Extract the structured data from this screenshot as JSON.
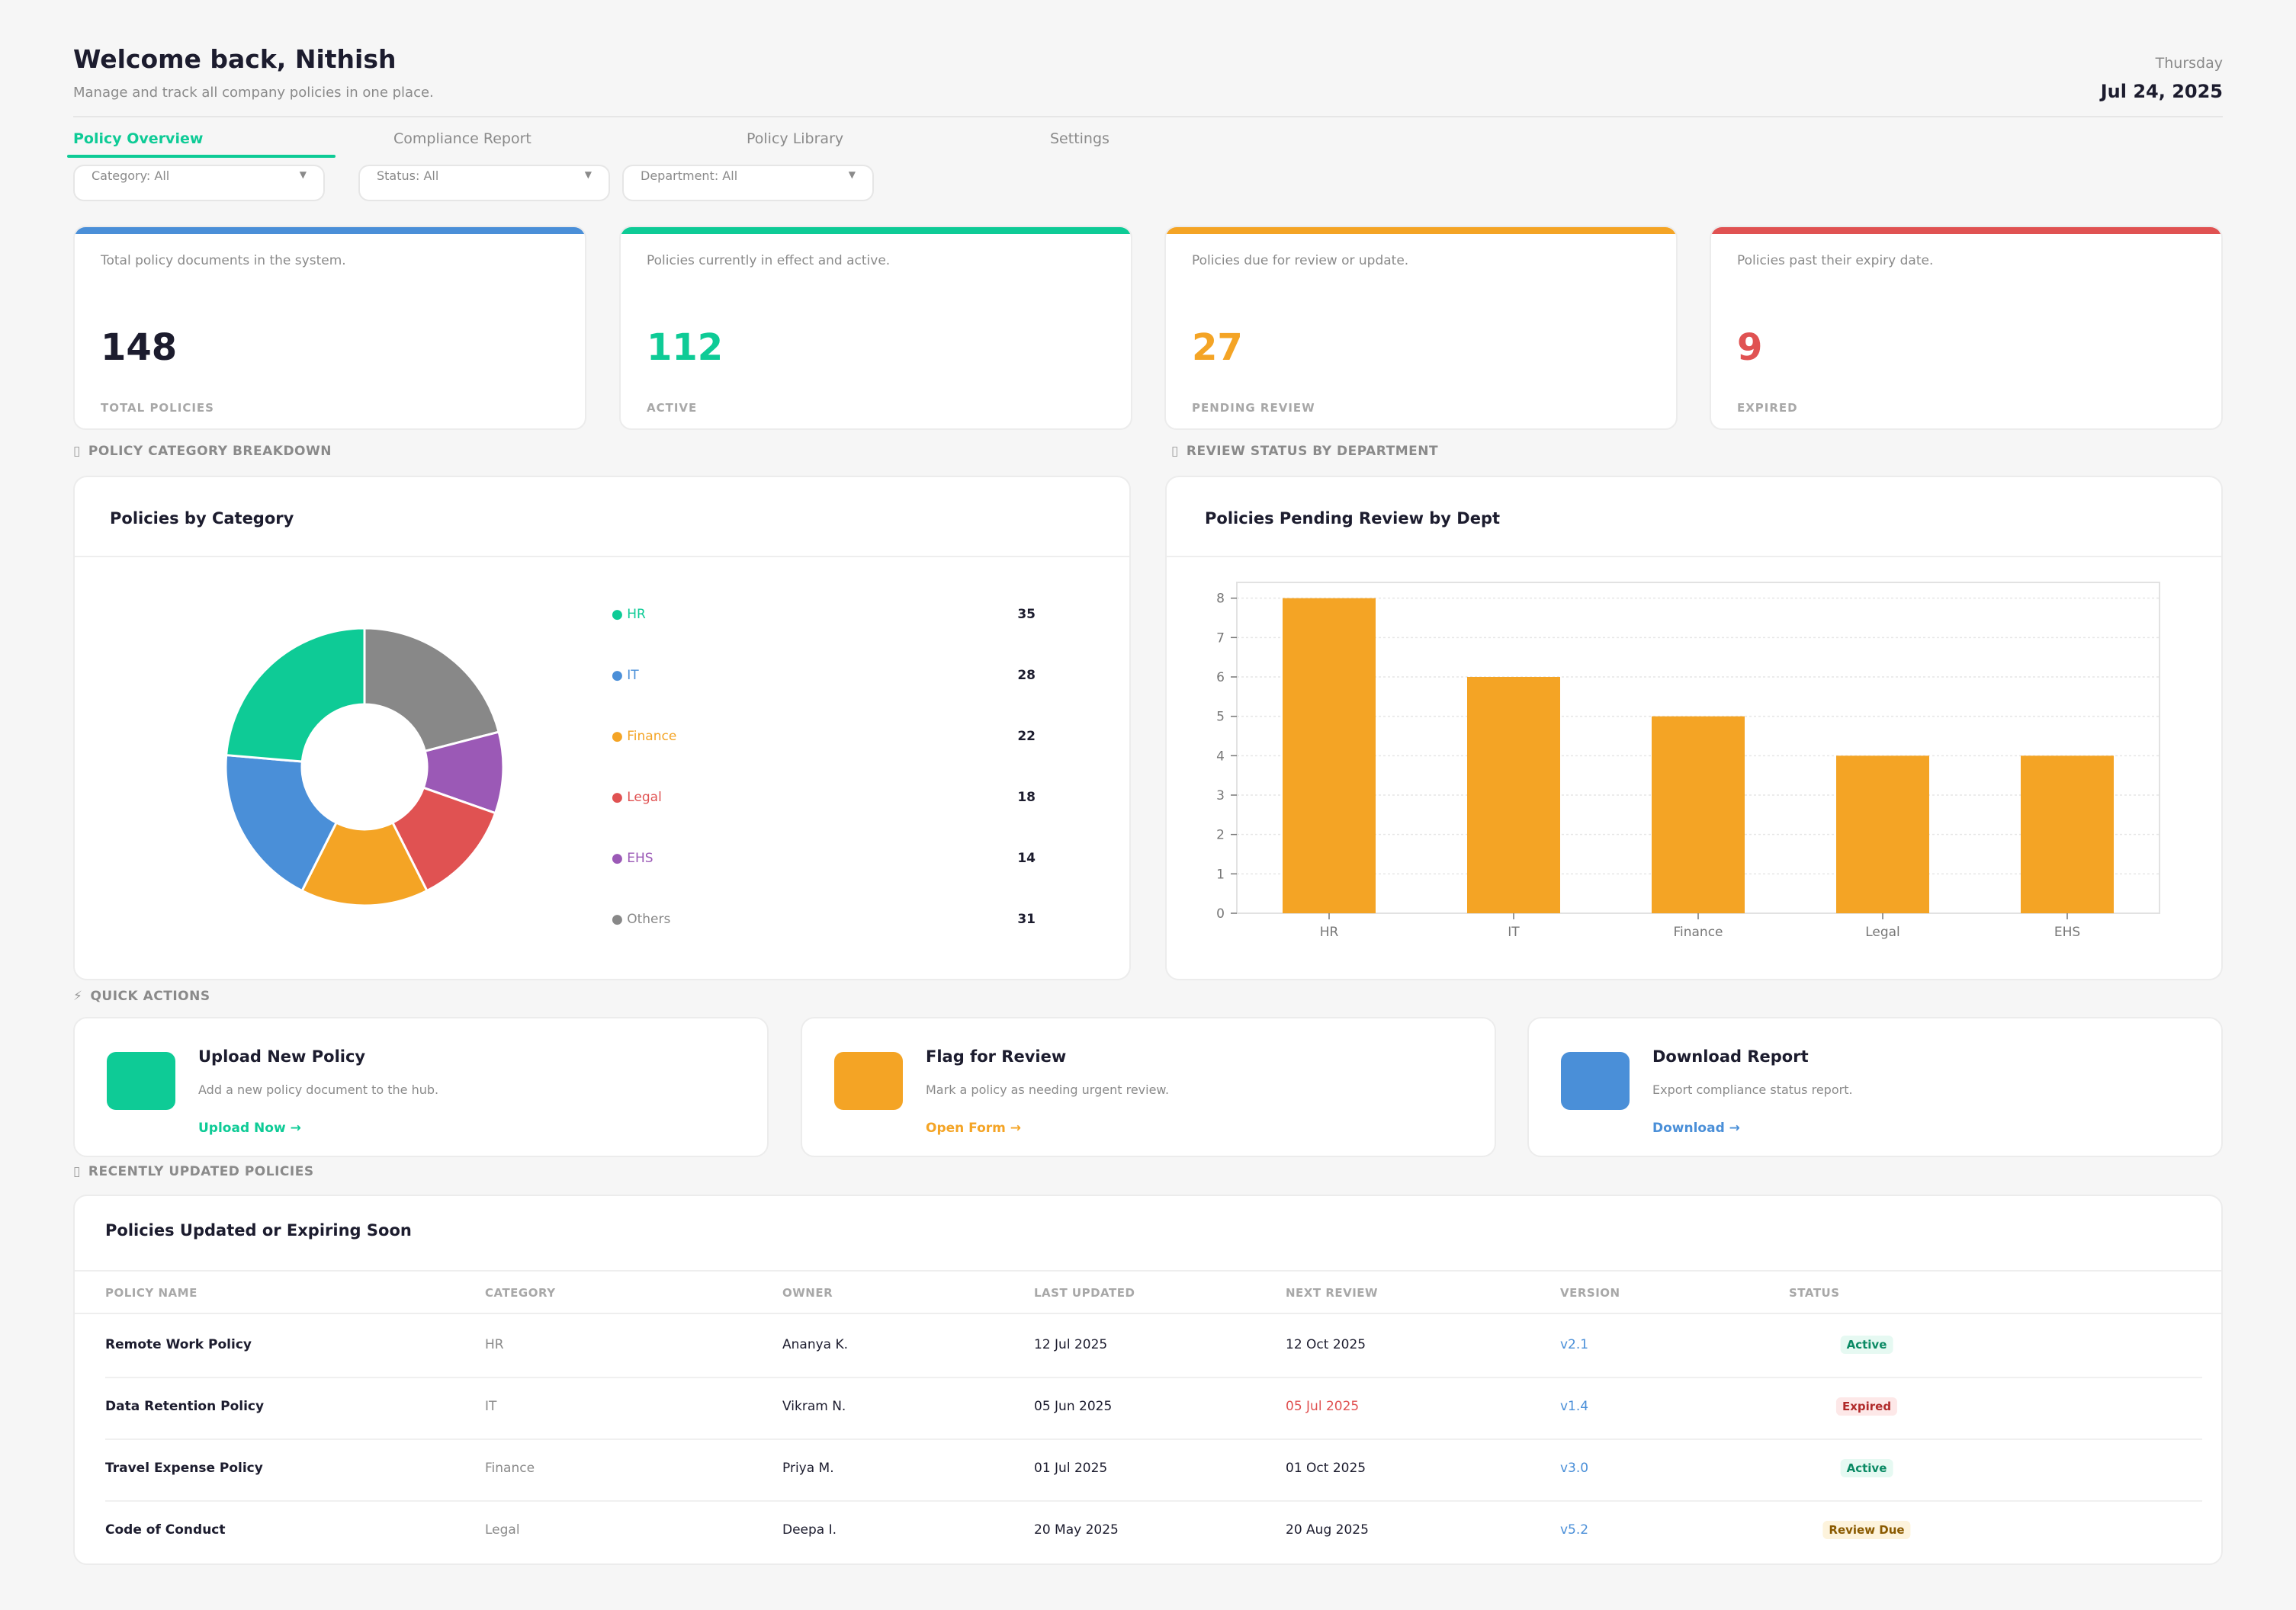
{
  "header": {
    "greeting": "Welcome back, Nithish",
    "subtitle": "Manage and track all company policies in one place.",
    "day": "Thursday",
    "date": "Jul 24, 2025"
  },
  "tabs": [
    {
      "label": "Policy Overview",
      "active": true
    },
    {
      "label": "Compliance Report",
      "active": false
    },
    {
      "label": "Policy Library",
      "active": false
    },
    {
      "label": "Settings",
      "active": false
    }
  ],
  "filters": [
    {
      "label": "Category: All"
    },
    {
      "label": "Status: All"
    },
    {
      "label": "Department: All"
    }
  ],
  "kpis": [
    {
      "desc": "Total policy documents in the system.",
      "value": "148",
      "label": "TOTAL POLICIES",
      "color": "#4a8fd8",
      "value_color": "#1c1c2e"
    },
    {
      "desc": "Policies currently in effect and active.",
      "value": "112",
      "label": "ACTIVE",
      "color": "#0ecb96",
      "value_color": "#0ecb96"
    },
    {
      "desc": "Policies due for review or update.",
      "value": "27",
      "label": "PENDING REVIEW",
      "color": "#f4a425",
      "value_color": "#f4a425"
    },
    {
      "desc": "Policies past their expiry date.",
      "value": "9",
      "label": "EXPIRED",
      "color": "#e05252",
      "value_color": "#e05252"
    }
  ],
  "sections": {
    "category": "POLICY CATEGORY BREAKDOWN",
    "review": "REVIEW STATUS BY DEPARTMENT",
    "quick": "QUICK ACTIONS",
    "recent": "RECENTLY UPDATED POLICIES"
  },
  "category_panel": {
    "title": "Policies by Category"
  },
  "review_panel": {
    "title": "Policies Pending Review by Dept"
  },
  "chart_data": [
    {
      "type": "pie",
      "title": "Policies by Category",
      "donut": true,
      "categories": [
        "HR",
        "IT",
        "Finance",
        "Legal",
        "EHS",
        "Others"
      ],
      "values": [
        35,
        28,
        22,
        18,
        14,
        31
      ],
      "colors": [
        "#0ecb96",
        "#4a8fd8",
        "#f4a425",
        "#e05252",
        "#9b59b6",
        "#888888"
      ]
    },
    {
      "type": "bar",
      "title": "Policies Pending Review by Dept",
      "categories": [
        "HR",
        "IT",
        "Finance",
        "Legal",
        "EHS"
      ],
      "values": [
        8,
        6,
        5,
        4,
        4
      ],
      "ylim": [
        0,
        8.4
      ],
      "yticks": [
        0,
        1,
        2,
        3,
        4,
        5,
        6,
        7,
        8
      ],
      "grid": true,
      "color": "#f4a425"
    }
  ],
  "quick_actions": [
    {
      "title": "Upload New Policy",
      "desc": "Add a new policy document to the hub.",
      "link": "Upload Now →",
      "color": "#0ecb96"
    },
    {
      "title": "Flag for Review",
      "desc": "Mark a policy as needing urgent review.",
      "link": "Open Form →",
      "color": "#f4a425"
    },
    {
      "title": "Download Report",
      "desc": "Export compliance status report.",
      "link": "Download →",
      "color": "#4a8fd8"
    }
  ],
  "table": {
    "title": "Policies Updated or Expiring Soon",
    "columns": [
      "POLICY NAME",
      "CATEGORY",
      "OWNER",
      "LAST UPDATED",
      "NEXT REVIEW",
      "VERSION",
      "STATUS"
    ],
    "rows": [
      {
        "name": "Remote Work Policy",
        "category": "HR",
        "owner": "Ananya K.",
        "updated": "12 Jul 2025",
        "review": "12 Oct 2025",
        "version": "v2.1",
        "status": "Active"
      },
      {
        "name": "Data Retention Policy",
        "category": "IT",
        "owner": "Vikram N.",
        "updated": "05 Jun 2025",
        "review": "05 Jul 2025",
        "version": "v1.4",
        "status": "Expired"
      },
      {
        "name": "Travel Expense Policy",
        "category": "Finance",
        "owner": "Priya M.",
        "updated": "01 Jul 2025",
        "review": "01 Oct 2025",
        "version": "v3.0",
        "status": "Active"
      },
      {
        "name": "Code of Conduct",
        "category": "Legal",
        "owner": "Deepa I.",
        "updated": "20 May 2025",
        "review": "20 Aug 2025",
        "version": "v5.2",
        "status": "Review Due"
      }
    ]
  }
}
